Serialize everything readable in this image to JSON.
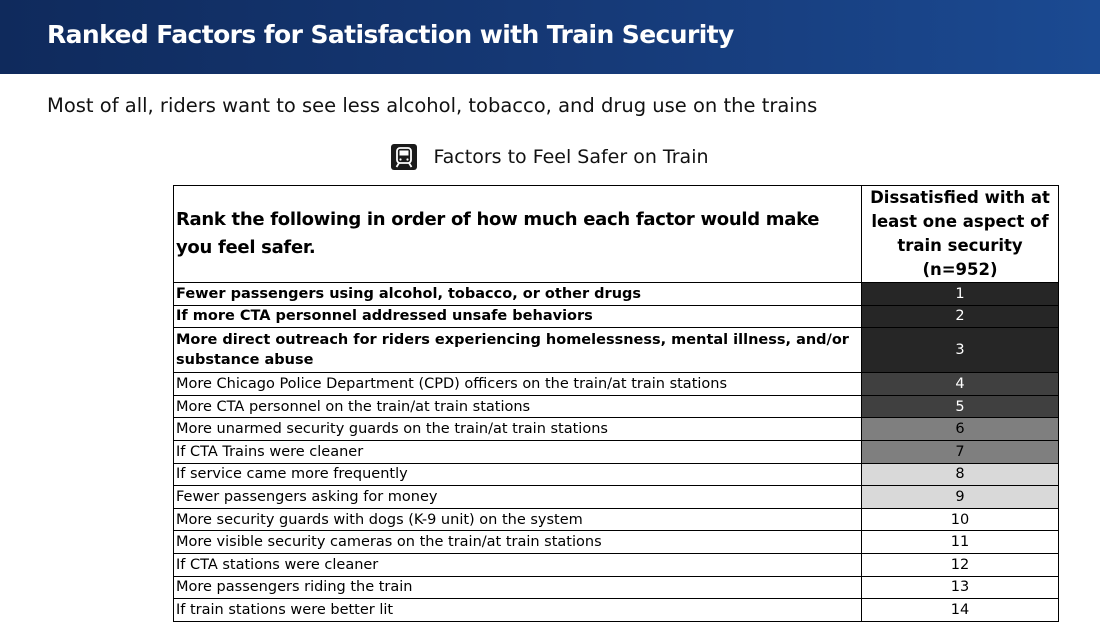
{
  "header": {
    "title": "Ranked Factors for Satisfaction with Train Security",
    "subtitle": "Most of all, riders want to see less alcohol, tobacco, and drug use on the trains"
  },
  "chart_title": "Factors to Feel Safer on Train",
  "chart_data": {
    "type": "table",
    "title": "Factors to Feel Safer on Train",
    "question_header": "Rank the following in order of how much each factor would make you feel safer.",
    "column_header": "Dissatisfied with at least one aspect of train security (n=952)",
    "rows": [
      {
        "factor": "Fewer passengers using alcohol, tobacco, or other drugs",
        "rank": 1,
        "bold": true,
        "tier": 1
      },
      {
        "factor": "If more CTA personnel addressed unsafe behaviors",
        "rank": 2,
        "bold": true,
        "tier": 1
      },
      {
        "factor": "More direct outreach for riders experiencing homelessness, mental illness, and/or substance abuse",
        "rank": 3,
        "bold": true,
        "tier": 1
      },
      {
        "factor": "More Chicago Police Department (CPD) officers on the train/at train stations",
        "rank": 4,
        "bold": false,
        "tier": 2
      },
      {
        "factor": "More CTA personnel on the train/at train stations",
        "rank": 5,
        "bold": false,
        "tier": 2
      },
      {
        "factor": "More unarmed security guards on the train/at train stations",
        "rank": 6,
        "bold": false,
        "tier": 3
      },
      {
        "factor": "If CTA Trains were cleaner",
        "rank": 7,
        "bold": false,
        "tier": 3
      },
      {
        "factor": "If service came more frequently",
        "rank": 8,
        "bold": false,
        "tier": 4
      },
      {
        "factor": "Fewer passengers asking for money",
        "rank": 9,
        "bold": false,
        "tier": 4
      },
      {
        "factor": "More security guards with dogs (K-9 unit) on the system",
        "rank": 10,
        "bold": false,
        "tier": 5
      },
      {
        "factor": "More visible security cameras on the train/at train stations",
        "rank": 11,
        "bold": false,
        "tier": 5
      },
      {
        "factor": "If CTA stations were cleaner",
        "rank": 12,
        "bold": false,
        "tier": 5
      },
      {
        "factor": "More passengers riding the train",
        "rank": 13,
        "bold": false,
        "tier": 5
      },
      {
        "factor": "If train stations were better lit",
        "rank": 14,
        "bold": false,
        "tier": 5
      }
    ],
    "tier_colors": {
      "1": {
        "bg": "#262626",
        "fg": "#ffffff"
      },
      "2": {
        "bg": "#404040",
        "fg": "#ffffff"
      },
      "3": {
        "bg": "#7f7f7f",
        "fg": "#000000"
      },
      "4": {
        "bg": "#d9d9d9",
        "fg": "#000000"
      },
      "5": {
        "bg": "#ffffff",
        "fg": "#000000"
      }
    }
  },
  "icons": {
    "chart_icon": "train-icon"
  }
}
